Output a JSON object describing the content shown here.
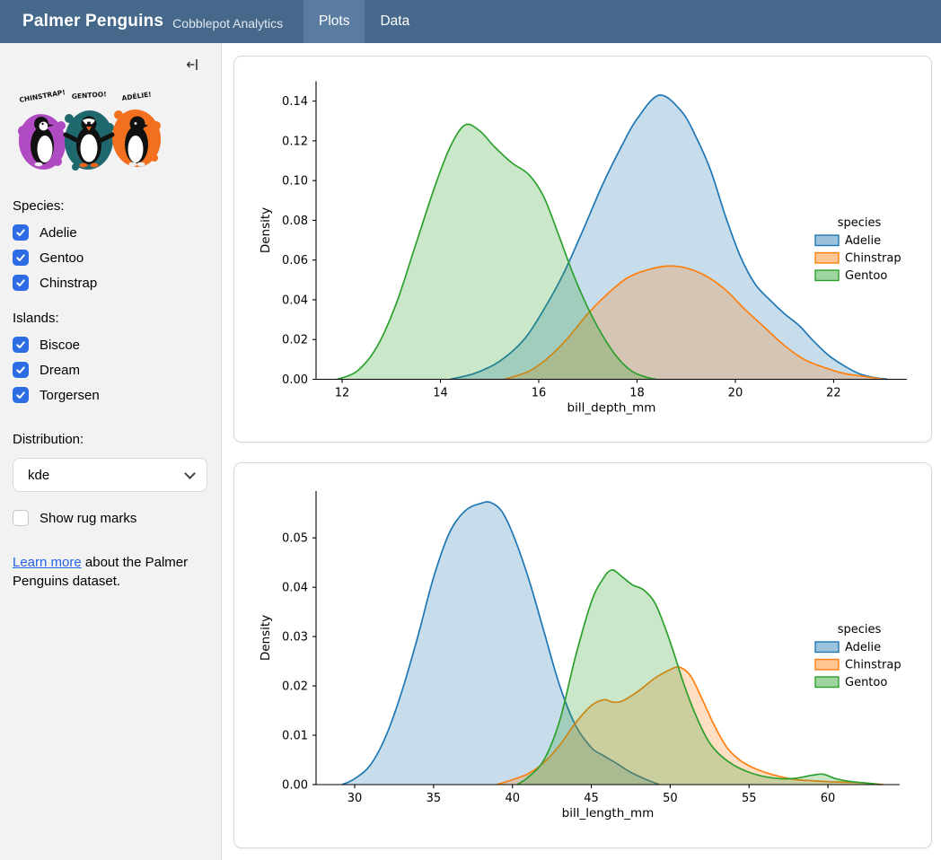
{
  "navbar": {
    "title": "Palmer Penguins",
    "subtitle": "Cobblepot Analytics",
    "tabs": [
      {
        "label": "Plots",
        "active": true
      },
      {
        "label": "Data",
        "active": false
      }
    ]
  },
  "sidebar": {
    "artwork_labels": [
      "CHINSTRAP!",
      "GENTOO!",
      "ADÉLIE!"
    ],
    "artwork_colors": {
      "chinstrap": "#b04ac2",
      "gentoo": "#1f686d",
      "adelie": "#f2701f"
    },
    "species": {
      "label": "Species:",
      "options": [
        {
          "label": "Adelie",
          "checked": true
        },
        {
          "label": "Gentoo",
          "checked": true
        },
        {
          "label": "Chinstrap",
          "checked": true
        }
      ]
    },
    "islands": {
      "label": "Islands:",
      "options": [
        {
          "label": "Biscoe",
          "checked": true
        },
        {
          "label": "Dream",
          "checked": true
        },
        {
          "label": "Torgersen",
          "checked": true
        }
      ]
    },
    "distribution": {
      "label": "Distribution:",
      "value": "kde"
    },
    "rug": {
      "label": "Show rug marks",
      "checked": false
    },
    "learn_more": {
      "link_text": "Learn more",
      "rest": " about the Palmer Penguins dataset."
    }
  },
  "icons": {
    "sidebar_collapse": "arrow-bar-left",
    "select_chevron": "chevron-down",
    "checkbox_check": "check"
  },
  "colors": {
    "navbar_bg": "#46688b",
    "navbar_active_tab": "#5a7ca0",
    "checkbox_accent": "#2d6ce5",
    "link": "#2563eb",
    "adelie": "#1f77b4",
    "chinstrap": "#ff7f0e",
    "gentoo": "#2ca02c"
  },
  "chart_data": [
    {
      "type": "area",
      "kind": "kde",
      "xlabel": "bill_depth_mm",
      "ylabel": "Density",
      "xlim": [
        11.47,
        23.49
      ],
      "ylim": [
        0,
        0.15
      ],
      "xticks": [
        12,
        14,
        16,
        18,
        20,
        22
      ],
      "yticks": [
        0.0,
        0.02,
        0.04,
        0.06,
        0.08,
        0.1,
        0.12,
        0.14
      ],
      "ytick_decimals": 2,
      "grid": false,
      "legend": {
        "title": "species",
        "position": "right",
        "entries": [
          "Adelie",
          "Chinstrap",
          "Gentoo"
        ]
      },
      "series": [
        {
          "name": "Adelie",
          "color": "#1f77b4",
          "points": [
            [
              14.2,
              0
            ],
            [
              14.7,
              0.003
            ],
            [
              15.2,
              0.009
            ],
            [
              15.7,
              0.02
            ],
            [
              16.1,
              0.035
            ],
            [
              16.5,
              0.053
            ],
            [
              16.9,
              0.075
            ],
            [
              17.3,
              0.098
            ],
            [
              17.7,
              0.118
            ],
            [
              18.0,
              0.131
            ],
            [
              18.45,
              0.143
            ],
            [
              18.9,
              0.135
            ],
            [
              19.2,
              0.122
            ],
            [
              19.5,
              0.105
            ],
            [
              19.8,
              0.082
            ],
            [
              20.1,
              0.062
            ],
            [
              20.4,
              0.048
            ],
            [
              20.7,
              0.04
            ],
            [
              21.0,
              0.033
            ],
            [
              21.3,
              0.027
            ],
            [
              21.6,
              0.019
            ],
            [
              21.9,
              0.012
            ],
            [
              22.2,
              0.007
            ],
            [
              22.5,
              0.003
            ],
            [
              22.8,
              0.001
            ],
            [
              23.1,
              0
            ]
          ]
        },
        {
          "name": "Chinstrap",
          "color": "#ff7f0e",
          "points": [
            [
              15.3,
              0
            ],
            [
              15.8,
              0.004
            ],
            [
              16.2,
              0.011
            ],
            [
              16.6,
              0.021
            ],
            [
              17.0,
              0.033
            ],
            [
              17.4,
              0.043
            ],
            [
              17.8,
              0.051
            ],
            [
              18.2,
              0.055
            ],
            [
              18.6,
              0.057
            ],
            [
              19.0,
              0.056
            ],
            [
              19.4,
              0.052
            ],
            [
              19.8,
              0.045
            ],
            [
              20.2,
              0.035
            ],
            [
              20.6,
              0.026
            ],
            [
              21.0,
              0.017
            ],
            [
              21.4,
              0.01
            ],
            [
              21.8,
              0.006
            ],
            [
              22.2,
              0.003
            ],
            [
              22.6,
              0.0015
            ],
            [
              23.0,
              0
            ]
          ]
        },
        {
          "name": "Gentoo",
          "color": "#2ca02c",
          "points": [
            [
              11.9,
              0
            ],
            [
              12.3,
              0.004
            ],
            [
              12.7,
              0.016
            ],
            [
              13.1,
              0.038
            ],
            [
              13.5,
              0.068
            ],
            [
              13.9,
              0.098
            ],
            [
              14.2,
              0.117
            ],
            [
              14.5,
              0.128
            ],
            [
              14.8,
              0.125
            ],
            [
              15.1,
              0.117
            ],
            [
              15.45,
              0.109
            ],
            [
              15.8,
              0.103
            ],
            [
              16.1,
              0.092
            ],
            [
              16.4,
              0.073
            ],
            [
              16.7,
              0.053
            ],
            [
              17.0,
              0.036
            ],
            [
              17.3,
              0.022
            ],
            [
              17.6,
              0.011
            ],
            [
              17.9,
              0.004
            ],
            [
              18.2,
              0.001
            ],
            [
              18.4,
              0
            ]
          ]
        }
      ]
    },
    {
      "type": "area",
      "kind": "kde",
      "xlabel": "bill_length_mm",
      "ylabel": "Density",
      "xlim": [
        27.55,
        64.55
      ],
      "ylim": [
        0,
        0.0595
      ],
      "xticks": [
        30,
        35,
        40,
        45,
        50,
        55,
        60
      ],
      "yticks": [
        0.0,
        0.01,
        0.02,
        0.03,
        0.04,
        0.05
      ],
      "ytick_decimals": 2,
      "grid": false,
      "legend": {
        "title": "species",
        "position": "right",
        "entries": [
          "Adelie",
          "Chinstrap",
          "Gentoo"
        ]
      },
      "series": [
        {
          "name": "Adelie",
          "color": "#1f77b4",
          "points": [
            [
              29.2,
              0
            ],
            [
              30,
              0.0012
            ],
            [
              31,
              0.004
            ],
            [
              32,
              0.01
            ],
            [
              33,
              0.019
            ],
            [
              34,
              0.03
            ],
            [
              35,
              0.042
            ],
            [
              36,
              0.051
            ],
            [
              37,
              0.0555
            ],
            [
              38,
              0.057
            ],
            [
              38.6,
              0.0572
            ],
            [
              39.3,
              0.0555
            ],
            [
              40,
              0.051
            ],
            [
              41,
              0.042
            ],
            [
              42,
              0.031
            ],
            [
              43,
              0.02
            ],
            [
              44,
              0.012
            ],
            [
              45,
              0.0075
            ],
            [
              45.7,
              0.006
            ],
            [
              46.5,
              0.0045
            ],
            [
              47.5,
              0.0025
            ],
            [
              48.5,
              0.001
            ],
            [
              49.3,
              0
            ]
          ]
        },
        {
          "name": "Chinstrap",
          "color": "#ff7f0e",
          "points": [
            [
              39,
              0
            ],
            [
              40,
              0.001
            ],
            [
              41,
              0.0022
            ],
            [
              42,
              0.0045
            ],
            [
              43,
              0.008
            ],
            [
              44,
              0.0125
            ],
            [
              45,
              0.016
            ],
            [
              45.8,
              0.0172
            ],
            [
              46.4,
              0.0167
            ],
            [
              47,
              0.017
            ],
            [
              48,
              0.019
            ],
            [
              49,
              0.0215
            ],
            [
              50,
              0.0233
            ],
            [
              50.6,
              0.0238
            ],
            [
              51.3,
              0.022
            ],
            [
              52,
              0.0175
            ],
            [
              52.8,
              0.012
            ],
            [
              53.6,
              0.0075
            ],
            [
              54.4,
              0.005
            ],
            [
              55.2,
              0.0035
            ],
            [
              56,
              0.0025
            ],
            [
              57,
              0.0016
            ],
            [
              58,
              0.001
            ],
            [
              59,
              0.0008
            ],
            [
              60,
              0.0006
            ],
            [
              61,
              0.0005
            ],
            [
              62,
              0.0004
            ],
            [
              63.5,
              0
            ]
          ]
        },
        {
          "name": "Gentoo",
          "color": "#2ca02c",
          "points": [
            [
              40.3,
              0
            ],
            [
              41,
              0.0015
            ],
            [
              42,
              0.005
            ],
            [
              43,
              0.013
            ],
            [
              44,
              0.026
            ],
            [
              45,
              0.037
            ],
            [
              45.7,
              0.0415
            ],
            [
              46.3,
              0.0435
            ],
            [
              47,
              0.042
            ],
            [
              47.6,
              0.0405
            ],
            [
              48.3,
              0.0395
            ],
            [
              49,
              0.037
            ],
            [
              49.6,
              0.0325
            ],
            [
              50.2,
              0.027
            ],
            [
              50.8,
              0.021
            ],
            [
              51.5,
              0.015
            ],
            [
              52.3,
              0.0095
            ],
            [
              53,
              0.0065
            ],
            [
              54,
              0.004
            ],
            [
              55,
              0.0025
            ],
            [
              56,
              0.0016
            ],
            [
              57,
              0.0012
            ],
            [
              58,
              0.0013
            ],
            [
              59,
              0.0019
            ],
            [
              59.7,
              0.0021
            ],
            [
              60.5,
              0.0012
            ],
            [
              61.5,
              0.0006
            ],
            [
              62.5,
              0.0003
            ],
            [
              63.3,
              0
            ]
          ]
        }
      ]
    }
  ]
}
